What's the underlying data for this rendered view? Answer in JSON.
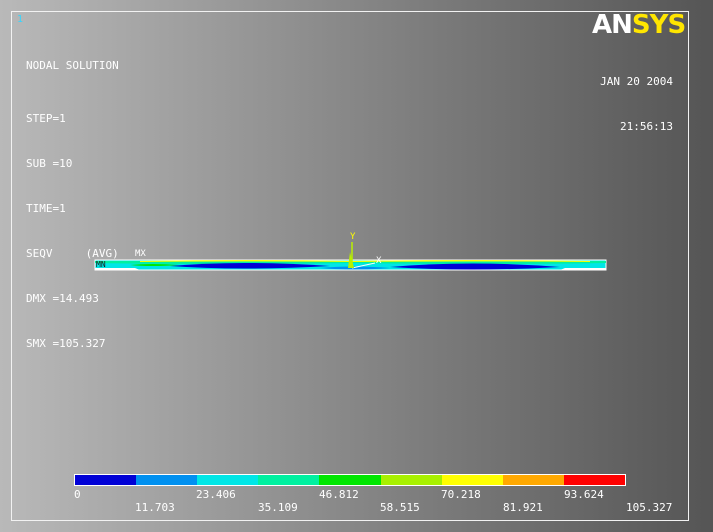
{
  "window": {
    "number": "1",
    "logo_an": "AN",
    "logo_sys": "SYS"
  },
  "status": {
    "title": "NODAL SOLUTION",
    "lines": [
      "STEP=1",
      "SUB =10",
      "TIME=1",
      "SEQV     (AVG)",
      "DMX =14.493",
      "SMX =105.327"
    ]
  },
  "datetime": {
    "date": "JAN 20 2004",
    "time": "21:56:13"
  },
  "model": {
    "labels": {
      "mx": "MX",
      "mn": "MN",
      "y_axis": "Y",
      "x_axis": "X"
    }
  },
  "legend": {
    "colors": [
      "#0000d6",
      "#0090f0",
      "#00e6e6",
      "#00f0a0",
      "#00e600",
      "#a8f000",
      "#ffff00",
      "#ffa800",
      "#ff0000"
    ],
    "upper_labels": [
      "0",
      "23.406",
      "46.812",
      "70.218",
      "93.624"
    ],
    "lower_labels": [
      "11.703",
      "35.109",
      "58.515",
      "81.921",
      "105.327"
    ]
  }
}
